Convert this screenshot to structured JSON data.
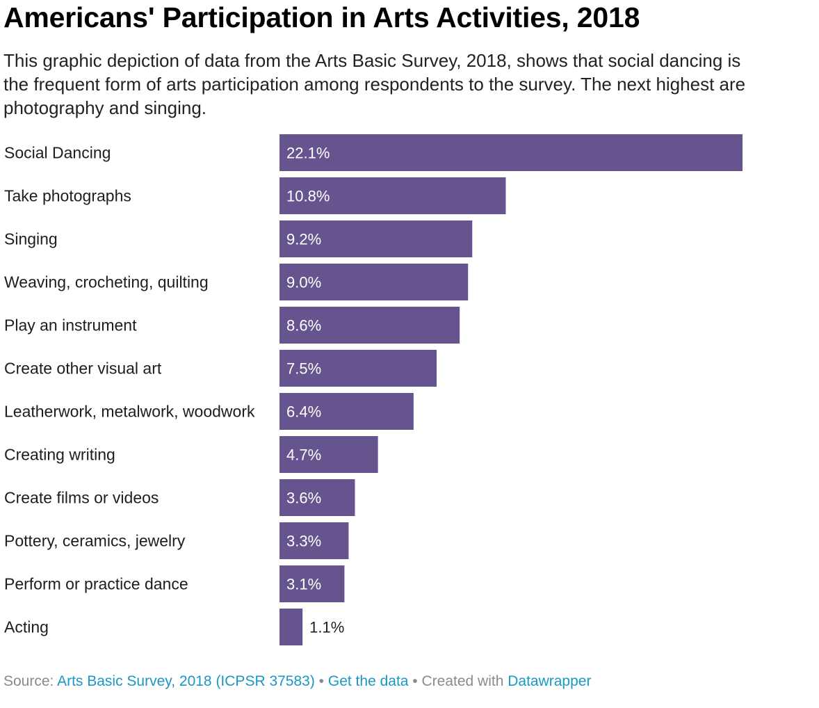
{
  "header": {
    "title": "Americans' Participation in Arts Activities, 2018",
    "subtitle": "This graphic depiction of data from the Arts Basic Survey, 2018, shows that social dancing is the frequent form of arts participation among respondents to the survey. The next highest are photography and singing."
  },
  "chart_data": {
    "type": "bar",
    "orientation": "horizontal",
    "categories": [
      "Social Dancing",
      "Take photographs",
      "Singing",
      "Weaving, crocheting, quilting",
      "Play an instrument",
      "Create other visual art",
      "Leatherwork, metalwork, woodwork",
      "Creating writing",
      "Create films or videos",
      "Pottery, ceramics, jewelry",
      "Perform or practice dance",
      "Acting"
    ],
    "values": [
      22.1,
      10.8,
      9.2,
      9.0,
      8.6,
      7.5,
      6.4,
      4.7,
      3.6,
      3.3,
      3.1,
      1.1
    ],
    "value_labels": [
      "22.1%",
      "10.8%",
      "9.2%",
      "9.0%",
      "8.6%",
      "7.5%",
      "6.4%",
      "4.7%",
      "3.6%",
      "3.3%",
      "3.1%",
      "1.1%"
    ],
    "unit": "%",
    "bar_color": "#66548f",
    "grid": false,
    "legend": "none"
  },
  "footer": {
    "source_prefix": "Source: ",
    "source_link": "Arts Basic Survey, 2018 (ICPSR 37583)",
    "separator": " • ",
    "get_data": "Get the data",
    "created_with": "Created with ",
    "tool": "Datawrapper",
    "link_color": "#1a97c4"
  }
}
